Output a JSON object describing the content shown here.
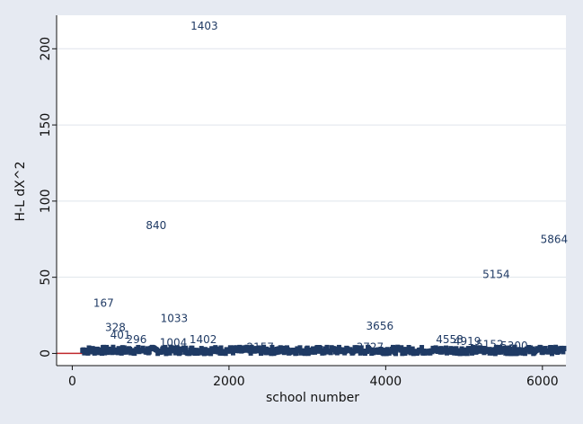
{
  "chart_data": {
    "type": "scatter",
    "title": "",
    "xlabel": "school number",
    "ylabel": "H-L dX^2",
    "xlim": [
      -200,
      6300
    ],
    "ylim": [
      -8,
      222
    ],
    "xticks": [
      0,
      2000,
      4000,
      6000
    ],
    "yticks": [
      0,
      50,
      100,
      150,
      200
    ],
    "grid": true,
    "legend": "none",
    "colors": {
      "plot_bg": "#ffffff",
      "outer_bg": "#e6eaf2",
      "marker_label": "#1f3a64",
      "grid": "#dfe4ec",
      "ref_line": "#c0282d"
    },
    "labeled_points": [
      {
        "label": "1403",
        "x": 1685,
        "y": 215
      },
      {
        "label": "840",
        "x": 1070,
        "y": 84
      },
      {
        "label": "5864",
        "x": 6150,
        "y": 75
      },
      {
        "label": "5154",
        "x": 5410,
        "y": 52
      },
      {
        "label": "167",
        "x": 400,
        "y": 33
      },
      {
        "label": "1033",
        "x": 1300,
        "y": 23
      },
      {
        "label": "3656",
        "x": 3925,
        "y": 18
      },
      {
        "label": "328",
        "x": 550,
        "y": 17
      },
      {
        "label": "401",
        "x": 615,
        "y": 12
      },
      {
        "label": "1402",
        "x": 1670,
        "y": 9
      },
      {
        "label": "296",
        "x": 820,
        "y": 9
      },
      {
        "label": "1004",
        "x": 1290,
        "y": 7
      },
      {
        "label": "4558",
        "x": 4815,
        "y": 9
      },
      {
        "label": "4919",
        "x": 5040,
        "y": 8
      },
      {
        "label": "5152",
        "x": 5330,
        "y": 6
      },
      {
        "label": "2157",
        "x": 2400,
        "y": 4
      },
      {
        "label": "5300",
        "x": 5640,
        "y": 5
      },
      {
        "label": "3727",
        "x": 3800,
        "y": 4
      }
    ],
    "dense_series": {
      "x_start": 130,
      "x_end": 6300,
      "y_range": [
        0,
        4
      ],
      "count": 520
    }
  }
}
